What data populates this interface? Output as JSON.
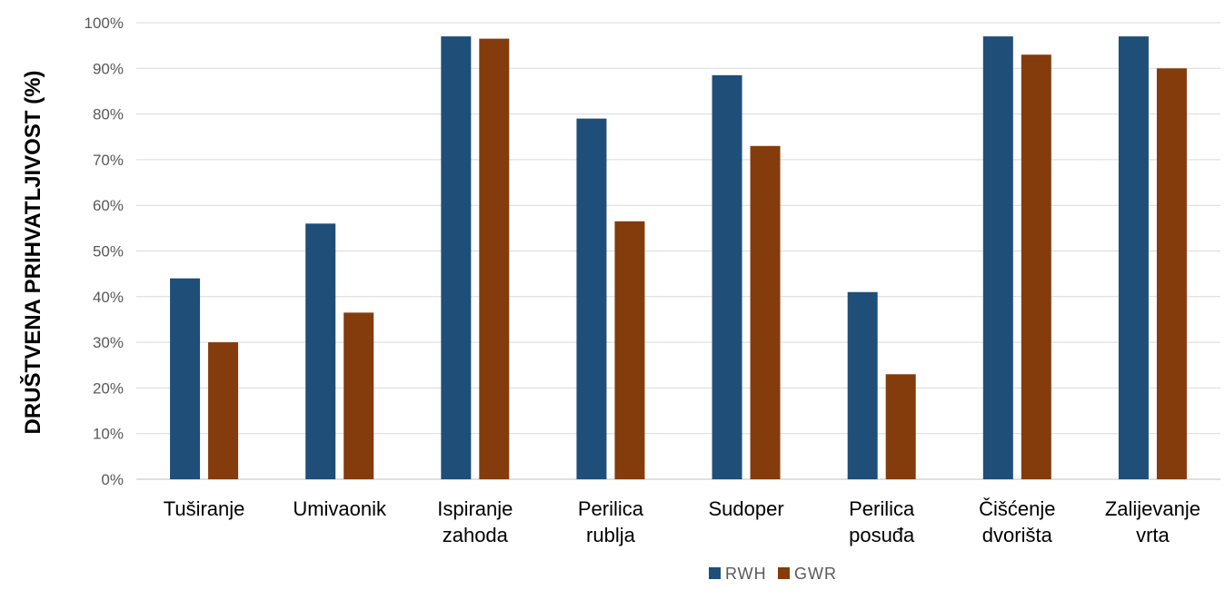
{
  "chart_data": {
    "type": "bar",
    "ylabel": "DRUŠTVENA PRIHVATLJIVOST (%)",
    "xlabel": "",
    "ylim": [
      0,
      100
    ],
    "y_ticks": [
      "0%",
      "10%",
      "20%",
      "30%",
      "40%",
      "50%",
      "60%",
      "70%",
      "80%",
      "90%",
      "100%"
    ],
    "grid": true,
    "legend_position": "bottom",
    "categories": [
      [
        "Tuširanje"
      ],
      [
        "Umivaonik"
      ],
      [
        "Ispiranje",
        "zahoda"
      ],
      [
        "Perilica",
        "rublja"
      ],
      [
        "Sudoper"
      ],
      [
        "Perilica",
        "posuđa"
      ],
      [
        "Čišćenje",
        "dvorišta"
      ],
      [
        "Zalijevanje",
        "vrta"
      ]
    ],
    "series": [
      {
        "name": "RWH",
        "color": "#1f4e79",
        "values": [
          44,
          56,
          97,
          79,
          88.5,
          41,
          97,
          97
        ]
      },
      {
        "name": "GWR",
        "color": "#843c0c",
        "values": [
          30,
          36.5,
          96.5,
          56.5,
          73,
          23,
          93,
          90
        ]
      }
    ]
  }
}
